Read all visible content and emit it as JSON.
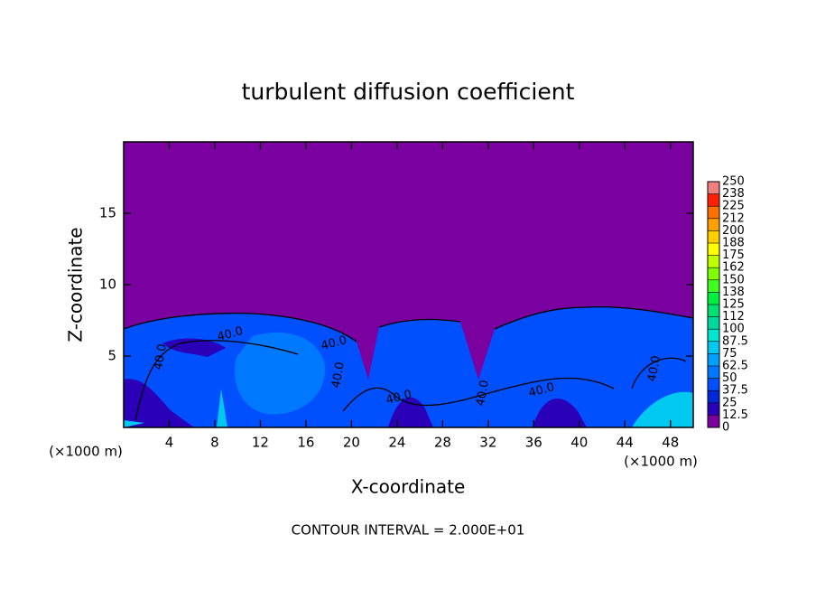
{
  "chart_data": {
    "type": "contour",
    "title": "turbulent diffusion coefficient",
    "x_label": "X-coordinate",
    "y_label": "Z-coordinate",
    "x_unit_left": "(×1000 m)",
    "x_unit_right": "(×1000 m)",
    "xlim": [
      0,
      50
    ],
    "xticks": [
      4,
      8,
      12,
      16,
      20,
      24,
      28,
      32,
      36,
      40,
      44,
      48
    ],
    "ylim": [
      0,
      20
    ],
    "yticks": [
      5,
      10,
      15
    ],
    "background_color": "#7a00a0",
    "colorbar": {
      "levels": [
        0,
        12.5,
        25,
        37.5,
        50,
        62.5,
        75,
        87.5,
        100,
        {
          "value": 112.5,
          "label": "112"
        },
        125,
        {
          "value": 137.5,
          "label": "138"
        },
        150,
        {
          "value": 162.5,
          "label": "162"
        },
        175,
        {
          "value": 187.5,
          "label": "188"
        },
        200,
        {
          "value": 212.5,
          "label": "212"
        },
        225,
        {
          "value": 237.5,
          "label": "238"
        },
        250
      ],
      "colors": [
        "#7a00a0",
        "#2a00b8",
        "#0028d8",
        "#0050ff",
        "#0078ff",
        "#00a0ff",
        "#00c8f0",
        "#00e6d0",
        "#00d8a0",
        "#00e070",
        "#00f040",
        "#40ff20",
        "#80ff00",
        "#c0ff00",
        "#ffff00",
        "#ffd000",
        "#ffa000",
        "#ff7000",
        "#ff2000",
        "#f08080"
      ]
    },
    "contour_labels": [
      "40.0",
      "40.0",
      "40.0",
      "40.0",
      "40.0",
      "40.0",
      "40.0",
      "40.0"
    ],
    "footnote": "CONTOUR INTERVAL = 2.000E+01"
  }
}
